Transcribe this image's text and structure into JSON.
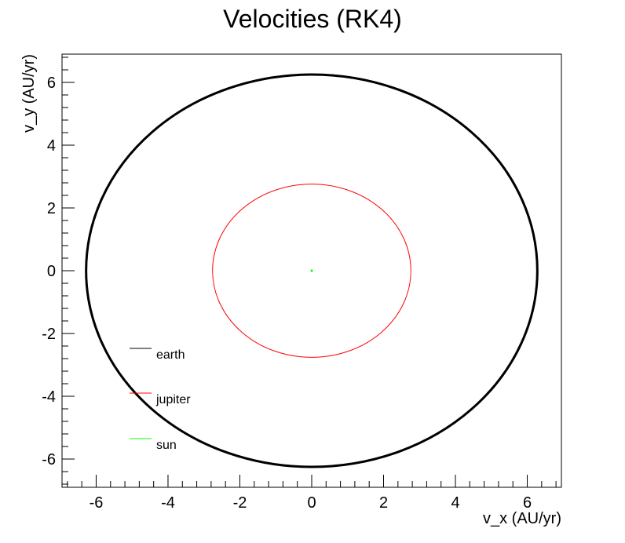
{
  "chart_data": {
    "type": "scatter",
    "title": "Velocities (RK4)",
    "xlabel": "v_x (AU/yr)",
    "ylabel": "v_y (AU/yr)",
    "xlim": [
      -6.95,
      6.95
    ],
    "ylim": [
      -6.9,
      6.9
    ],
    "xticks": [
      -6,
      -4,
      -2,
      0,
      2,
      4,
      6
    ],
    "yticks": [
      -6,
      -4,
      -2,
      0,
      2,
      4,
      6
    ],
    "grid": false,
    "legend_position": "left",
    "series": [
      {
        "name": "earth",
        "color": "#000000",
        "shape": "ellipse",
        "center": [
          0,
          0
        ],
        "radius_x": 6.28,
        "radius_y": 6.25,
        "stroke_width": 3
      },
      {
        "name": "jupiter",
        "color": "#ff0000",
        "shape": "ellipse",
        "center": [
          0,
          0
        ],
        "radius_x": 2.76,
        "radius_y": 2.76,
        "stroke_width": 1
      },
      {
        "name": "sun",
        "color": "#00ff00",
        "shape": "point",
        "center": [
          0,
          0
        ],
        "radius_x": 0.03,
        "radius_y": 0.03,
        "stroke_width": 1
      }
    ]
  }
}
